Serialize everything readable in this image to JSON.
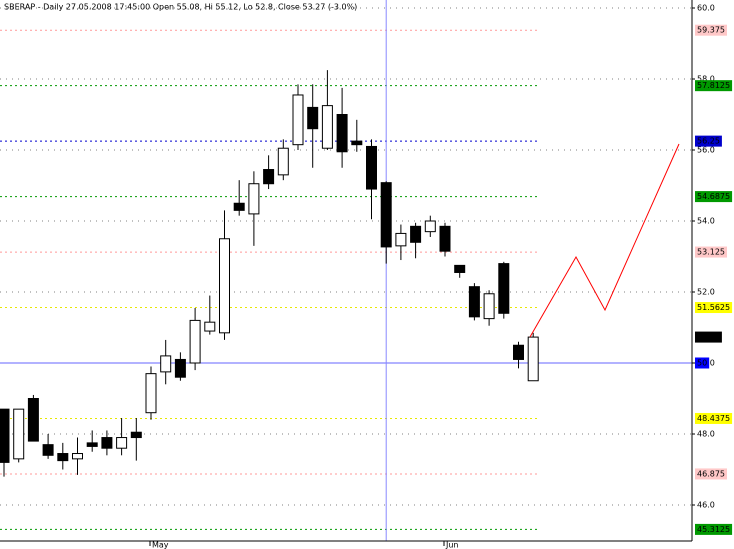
{
  "chart_data": {
    "type": "candlestick",
    "title": "SBERAP - Daily 27.05.2008 17:45:00 Open 55.08, Hi 55.12, Lo 52.8, Close 53.27 (-3.0%)",
    "categories": [
      null,
      null,
      null,
      null,
      null,
      null,
      null,
      null,
      null,
      null,
      "May",
      null,
      null,
      null,
      null,
      null,
      null,
      null,
      null,
      null,
      null,
      null,
      null,
      null,
      null,
      null,
      null,
      null,
      null,
      null,
      "Jun",
      null,
      null,
      null,
      null,
      null,
      null
    ],
    "open": [
      48.7,
      47.3,
      49.0,
      47.7,
      47.45,
      47.3,
      47.75,
      47.9,
      47.6,
      48.05,
      48.6,
      49.75,
      50.1,
      50.0,
      50.9,
      50.85,
      54.5,
      54.2,
      55.45,
      55.3,
      56.15,
      57.2,
      56.05,
      57.0,
      56.25,
      56.1,
      55.08,
      53.3,
      53.85,
      53.7,
      53.85,
      52.75,
      52.15,
      51.25,
      52.8,
      50.5,
      49.5
    ],
    "high": [
      48.7,
      48.7,
      49.1,
      48.0,
      47.75,
      47.9,
      48.1,
      48.1,
      48.45,
      48.45,
      49.9,
      50.65,
      50.3,
      51.55,
      51.9,
      54.3,
      55.15,
      55.4,
      55.85,
      56.3,
      57.85,
      57.85,
      58.25,
      57.75,
      56.85,
      56.3,
      55.12,
      53.9,
      53.95,
      54.15,
      53.95,
      52.75,
      52.25,
      52.05,
      52.85,
      50.6,
      50.85
    ],
    "low": [
      46.8,
      47.2,
      47.8,
      47.3,
      47.0,
      46.85,
      47.5,
      47.4,
      47.4,
      47.25,
      48.4,
      49.4,
      49.5,
      49.8,
      50.8,
      50.65,
      54.15,
      53.3,
      54.9,
      55.15,
      56.0,
      55.5,
      56.0,
      55.5,
      55.95,
      54.05,
      52.8,
      52.9,
      52.95,
      53.55,
      53.0,
      52.4,
      51.2,
      51.05,
      51.25,
      49.85,
      49.5
    ],
    "close": [
      47.2,
      48.7,
      47.8,
      47.4,
      47.25,
      47.45,
      47.65,
      47.6,
      47.9,
      47.9,
      49.7,
      50.2,
      49.6,
      51.2,
      51.15,
      53.5,
      54.3,
      55.05,
      55.05,
      56.05,
      57.55,
      56.6,
      57.25,
      55.95,
      56.15,
      54.9,
      53.27,
      53.65,
      53.4,
      54.0,
      53.15,
      52.55,
      51.3,
      51.95,
      51.4,
      50.1,
      50.73
    ],
    "up_color": "#ffffff",
    "down_color": "#000000",
    "ylim": [
      45,
      60
    ],
    "yticks": [
      {
        "value": 46,
        "label": "46.0"
      },
      {
        "value": 48,
        "label": "48.0"
      },
      {
        "value": 50,
        "label": "50.0"
      },
      {
        "value": 52,
        "label": "52.0"
      },
      {
        "value": 54,
        "label": "54.0"
      },
      {
        "value": 56,
        "label": "56.0"
      },
      {
        "value": 58,
        "label": "58.0"
      },
      {
        "value": 60,
        "label": "60.0"
      }
    ],
    "grid": true,
    "levels": [
      {
        "value": 59.375,
        "color": "#ff9999",
        "bg": "#ffc8c8",
        "fg": "#cc0000"
      },
      {
        "value": 57.8125,
        "color": "#009900",
        "bg": "#009900",
        "fg": "#ffffff"
      },
      {
        "value": 56.25,
        "color": "#0000cc",
        "bg": "#0000cc",
        "fg": "#ffffff"
      },
      {
        "value": 54.6875,
        "color": "#009900",
        "bg": "#009900",
        "fg": "#ffffff"
      },
      {
        "value": 53.125,
        "color": "#ff9999",
        "bg": "#ffc8c8",
        "fg": "#cc0000"
      },
      {
        "value": 51.5625,
        "color": "#e8e800",
        "bg": "#ffff00",
        "fg": "#000000"
      },
      {
        "value": 50,
        "color": "#6666ff",
        "bg": "#0000ff",
        "fg": "#ffffff"
      },
      {
        "value": 48.4375,
        "color": "#e8e800",
        "bg": "#ffff00",
        "fg": "#000000"
      },
      {
        "value": 46.875,
        "color": "#ff9999",
        "bg": "#ffc8c8",
        "fg": "#cc0000"
      },
      {
        "value": 45.3125,
        "color": "#009900",
        "bg": "#009900",
        "fg": "#ffffff"
      }
    ],
    "crosshair_index": 26
  }
}
